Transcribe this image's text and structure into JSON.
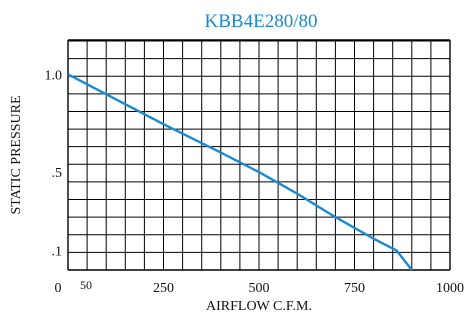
{
  "chart_data": {
    "type": "line",
    "title": "KBB4E280/80",
    "xlabel": "AIRFLOW C.F.M.",
    "ylabel": "STATIC PRESSURE",
    "xlim": [
      0,
      1000
    ],
    "ylim": [
      0,
      1.175
    ],
    "grid": true,
    "grid_step_x": 50,
    "grid_step_y": 0.09,
    "x_ticks": [
      {
        "value": 0,
        "label": "0"
      },
      {
        "value": 50,
        "label": "50"
      },
      {
        "value": 250,
        "label": "250"
      },
      {
        "value": 500,
        "label": "500"
      },
      {
        "value": 750,
        "label": "750"
      },
      {
        "value": 1000,
        "label": "1000"
      }
    ],
    "y_ticks": [
      {
        "value": 0.1,
        "label": ".1"
      },
      {
        "value": 0.5,
        "label": ".5"
      },
      {
        "value": 1.0,
        "label": "1.0"
      }
    ],
    "series": [
      {
        "color": "#1b8bd1",
        "points": [
          [
            0,
            1.0
          ],
          [
            250,
            0.745
          ],
          [
            400,
            0.6
          ],
          [
            500,
            0.5
          ],
          [
            600,
            0.39
          ],
          [
            700,
            0.27
          ],
          [
            800,
            0.16
          ],
          [
            860,
            0.1
          ],
          [
            900,
            0.0
          ]
        ]
      }
    ]
  }
}
